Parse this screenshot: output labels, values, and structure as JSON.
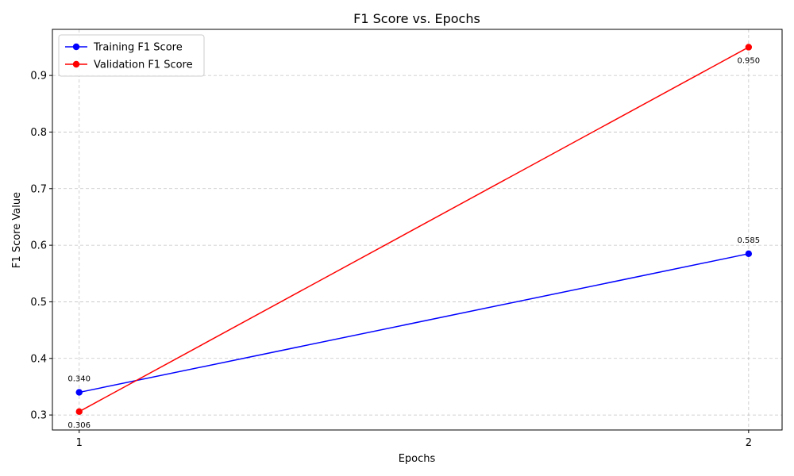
{
  "chart_data": {
    "type": "line",
    "title": "F1 Score vs. Epochs",
    "xlabel": "Epochs",
    "ylabel": "F1 Score Value",
    "x": [
      1,
      2
    ],
    "x_ticks": [
      "1",
      "2"
    ],
    "xlim": [
      0.96,
      2.05
    ],
    "ylim": [
      0.2735,
      0.9815
    ],
    "y_ticks": [
      0.3,
      0.4,
      0.5,
      0.6,
      0.7,
      0.8,
      0.9
    ],
    "y_tick_labels": [
      "0.3",
      "0.4",
      "0.5",
      "0.6",
      "0.7",
      "0.8",
      "0.9"
    ],
    "grid": true,
    "legend_position": "top-left",
    "series": [
      {
        "name": "Training F1 Score",
        "color": "#0000ff",
        "values": [
          0.34,
          0.585
        ],
        "labels": [
          "0.340",
          "0.585"
        ],
        "label_position": "above"
      },
      {
        "name": "Validation F1 Score",
        "color": "#ff0000",
        "values": [
          0.306,
          0.95
        ],
        "labels": [
          "0.306",
          "0.950"
        ],
        "label_position": "below"
      }
    ]
  }
}
